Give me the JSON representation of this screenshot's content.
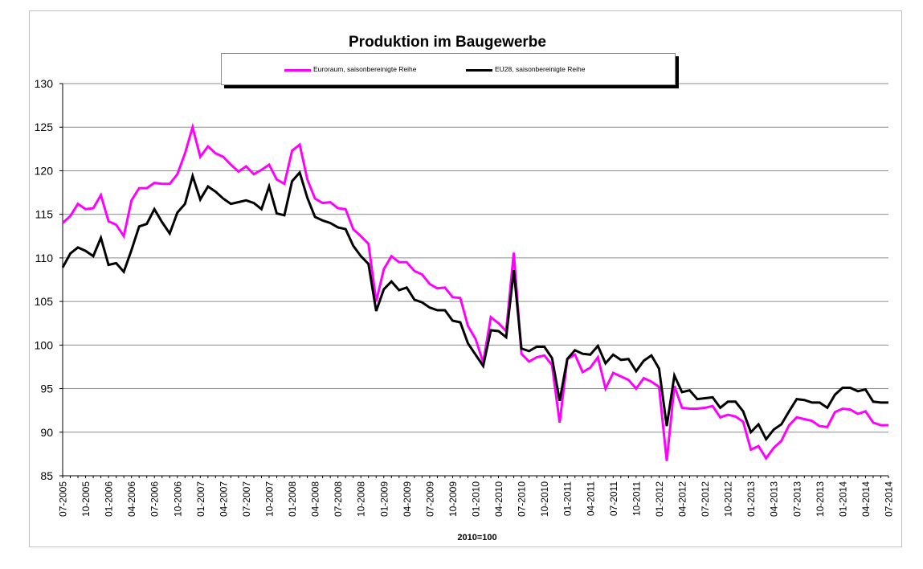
{
  "chart_data": {
    "type": "line",
    "title": "Produktion im Baugewerbe",
    "xlabel": "2010=100",
    "ylabel": "",
    "ylim": [
      85,
      130
    ],
    "yticks": [
      85,
      90,
      95,
      100,
      105,
      110,
      115,
      120,
      125,
      130
    ],
    "grid": true,
    "legend_position": "top-center",
    "x_tick_labels": [
      "07-2005",
      "10-2005",
      "01-2006",
      "04-2006",
      "07-2006",
      "10-2006",
      "01-2007",
      "04-2007",
      "07-2007",
      "10-2007",
      "01-2008",
      "04-2008",
      "07-2008",
      "10-2008",
      "01-2009",
      "04-2009",
      "07-2009",
      "10-2009",
      "01-2010",
      "04-2010",
      "07-2010",
      "10-2010",
      "01-2011",
      "04-2011",
      "07-2011",
      "10-2011",
      "01-2012",
      "04-2012",
      "07-2012",
      "10-2012",
      "01-2013",
      "04-2013",
      "07-2013",
      "10-2013",
      "01-2014",
      "04-2014",
      "07-2014"
    ],
    "series": [
      {
        "name": "Euroraum, saisonbereinigte Reihe",
        "color": "#ff00ff",
        "values": [
          114.0,
          114.8,
          116.2,
          115.6,
          115.7,
          117.2,
          114.2,
          113.8,
          112.5,
          116.6,
          118.0,
          118.0,
          118.6,
          118.5,
          118.5,
          119.6,
          122.0,
          125.0,
          121.6,
          122.8,
          122.0,
          121.6,
          120.7,
          119.9,
          120.5,
          119.6,
          120.1,
          120.7,
          119.0,
          118.5,
          122.3,
          123.0,
          119.0,
          116.8,
          116.3,
          116.4,
          115.7,
          115.6,
          113.3,
          112.5,
          111.6,
          105.0,
          108.7,
          110.2,
          109.5,
          109.5,
          108.5,
          108.1,
          107.0,
          106.5,
          106.6,
          105.5,
          105.4,
          102.2,
          100.7,
          98.0,
          103.2,
          102.5,
          101.6,
          110.6,
          99.0,
          98.1,
          98.6,
          98.8,
          97.7,
          91.1,
          98.4,
          98.9,
          96.9,
          97.4,
          98.6,
          95.0,
          96.8,
          96.4,
          96.0,
          95.0,
          96.2,
          95.8,
          95.2,
          86.7,
          95.3,
          92.8,
          92.7,
          92.7,
          92.8,
          93.0,
          91.7,
          92.0,
          91.8,
          91.2,
          88.0,
          88.4,
          87.0,
          88.2,
          89.0,
          90.8,
          91.7,
          91.5,
          91.3,
          90.7,
          90.6,
          92.3,
          92.7,
          92.6,
          92.1,
          92.4,
          91.1,
          90.8,
          90.8
        ]
      },
      {
        "name": "EU28, saisonbereinigte Reihe",
        "color": "#000000",
        "values": [
          108.9,
          110.5,
          111.2,
          110.8,
          110.2,
          112.3,
          109.2,
          109.4,
          108.4,
          110.9,
          113.6,
          113.9,
          115.6,
          114.1,
          112.8,
          115.2,
          116.2,
          119.4,
          116.7,
          118.2,
          117.6,
          116.8,
          116.2,
          116.4,
          116.6,
          116.3,
          115.6,
          118.2,
          115.1,
          114.9,
          118.8,
          119.8,
          116.9,
          114.7,
          114.3,
          114.0,
          113.5,
          113.3,
          111.4,
          110.2,
          109.3,
          103.9,
          106.4,
          107.3,
          106.3,
          106.6,
          105.2,
          104.9,
          104.3,
          104.0,
          104.0,
          102.8,
          102.6,
          100.2,
          98.9,
          97.6,
          101.7,
          101.6,
          100.9,
          108.6,
          99.6,
          99.3,
          99.8,
          99.8,
          98.5,
          93.6,
          98.4,
          99.4,
          99.0,
          98.9,
          99.9,
          97.9,
          98.9,
          98.3,
          98.4,
          97.0,
          98.2,
          98.8,
          97.3,
          90.7,
          96.5,
          94.6,
          94.8,
          93.8,
          93.9,
          94.0,
          92.8,
          93.5,
          93.5,
          92.4,
          90.0,
          90.9,
          89.2,
          90.3,
          90.9,
          92.4,
          93.8,
          93.7,
          93.4,
          93.4,
          92.8,
          94.3,
          95.1,
          95.1,
          94.7,
          94.9,
          93.5,
          93.4,
          93.4
        ]
      }
    ]
  }
}
